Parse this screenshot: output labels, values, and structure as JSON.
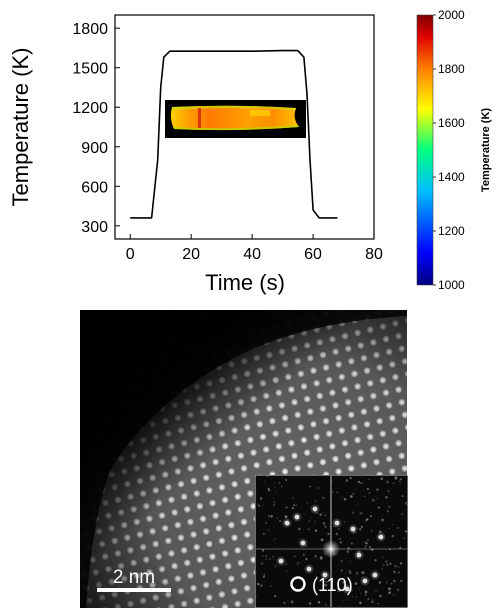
{
  "chart_data": [
    {
      "type": "line",
      "xlabel": "Time (s)",
      "ylabel": "Temperature (K)",
      "xlim": [
        -5,
        80
      ],
      "ylim": [
        200,
        1900
      ],
      "xticks": [
        "0",
        "20",
        "40",
        "60",
        "80"
      ],
      "yticks": [
        "300",
        "600",
        "900",
        "1200",
        "1500",
        "1800"
      ],
      "grid": false,
      "series": [
        {
          "color": "#000000",
          "x": [
            0,
            7,
            9,
            10,
            11,
            13,
            20,
            30,
            40,
            50,
            55,
            57,
            58,
            59,
            60,
            62,
            68
          ],
          "y": [
            360,
            360,
            800,
            1350,
            1580,
            1625,
            1625,
            1625,
            1625,
            1630,
            1630,
            1580,
            1300,
            800,
            420,
            360,
            360
          ]
        }
      ],
      "inset": {
        "kind": "thermal-image",
        "colormap": "jet"
      },
      "colorbar": {
        "label": "Temperature (K)",
        "range": [
          1000,
          2000
        ],
        "ticks": [
          "1000",
          "1200",
          "1400",
          "1600",
          "1800",
          "2000"
        ],
        "colors": [
          "#00007f",
          "#0000ff",
          "#00bfff",
          "#00ff80",
          "#ffff00",
          "#ff8000",
          "#e00000",
          "#800000"
        ]
      }
    }
  ],
  "micrograph": {
    "scale_bar": "2 nm",
    "fft_label": "(110)"
  }
}
